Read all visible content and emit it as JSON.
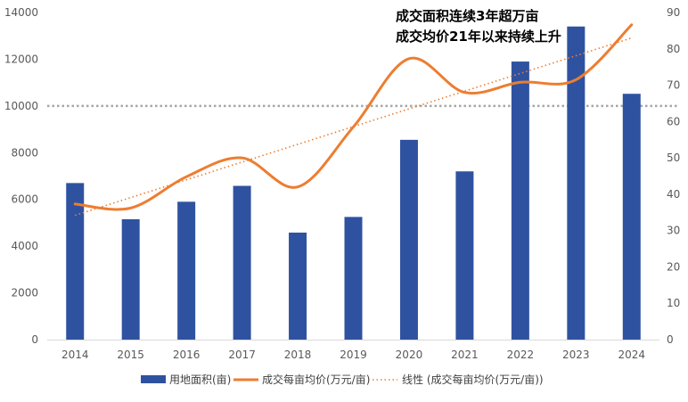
{
  "chart_data": {
    "type": "bar",
    "categories": [
      "2014",
      "2015",
      "2016",
      "2017",
      "2018",
      "2019",
      "2020",
      "2021",
      "2022",
      "2023",
      "2024"
    ],
    "series": [
      {
        "name": "用地面积(亩)",
        "type": "bar",
        "axis": "left",
        "color": "#2F52A0",
        "values": [
          6700,
          5150,
          5900,
          6580,
          4580,
          5250,
          8550,
          7200,
          11900,
          13400,
          10520
        ]
      },
      {
        "name": "成交每亩均价(万元/亩)",
        "type": "line",
        "axis": "right",
        "color": "#ED7D31",
        "values": [
          37.3,
          36.2,
          44.8,
          50.0,
          42.0,
          58.5,
          77.3,
          68.0,
          70.8,
          71.5,
          86.6
        ]
      },
      {
        "name": "线性 (成交每亩均价(万元/亩))",
        "type": "trendline",
        "axis": "right",
        "color": "#ED7D31",
        "start": 34.2,
        "end": 83.0
      }
    ],
    "left_axis": {
      "min": 0,
      "max": 14000,
      "ticks": [
        "0",
        "2000",
        "4000",
        "6000",
        "8000",
        "10000",
        "12000",
        "14000"
      ]
    },
    "right_axis": {
      "min": 0,
      "max": 90,
      "ticks": [
        "0",
        "10",
        "20",
        "30",
        "40",
        "50",
        "60",
        "70",
        "80",
        "90"
      ]
    },
    "reference_line": {
      "value": 10000,
      "axis": "left",
      "color": "#A6A6A6"
    },
    "annotations": [
      "成交面积连续3年超万亩",
      "成交均价21年以来持续上升"
    ],
    "legend_position": "bottom"
  }
}
